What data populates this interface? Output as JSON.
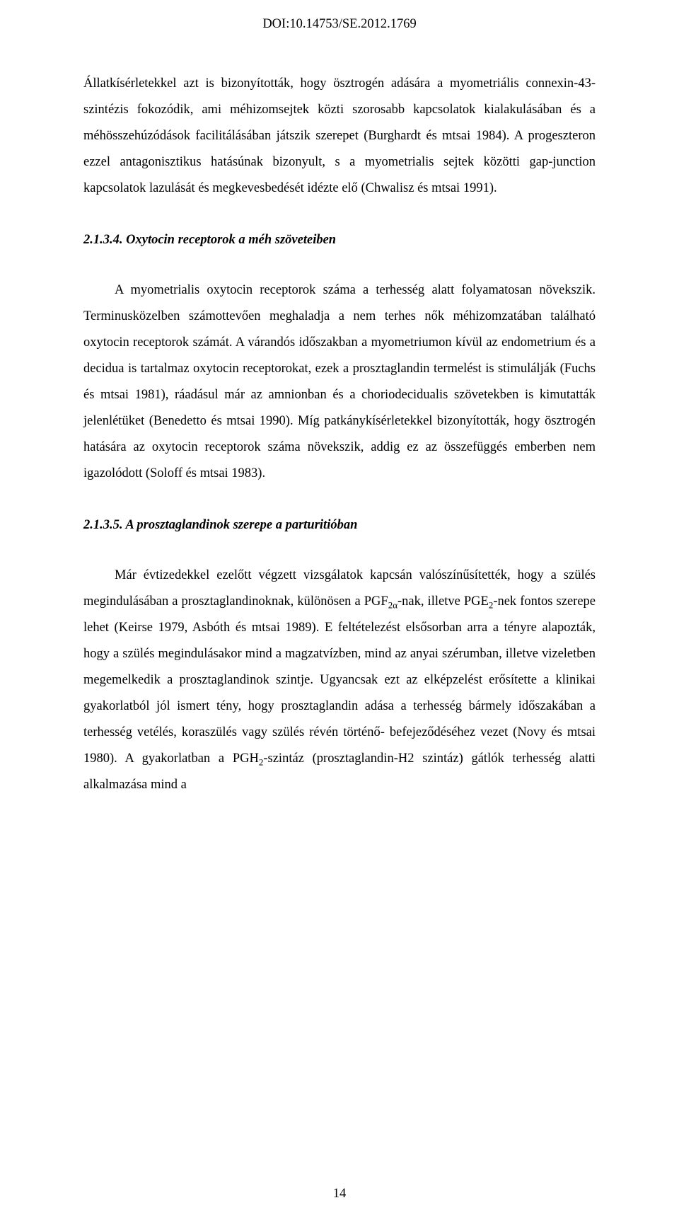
{
  "doi": "DOI:10.14753/SE.2012.1769",
  "para1": "Állatkísérletekkel azt is bizonyították, hogy ösztrogén adására a myometriális connexin-43-szintézis fokozódik, ami méhizomsejtek közti szorosabb kapcsolatok kialakulásában és a méhösszehúzódások facilitálásában játszik szerepet (Burghardt és mtsai 1984). A progeszteron ezzel antagonisztikus hatásúnak bizonyult, s a myometrialis sejtek közötti gap-junction kapcsolatok lazulását és megkevesbedését idézte elő (Chwalisz és mtsai 1991).",
  "heading1": "2.1.3.4. Oxytocin receptorok a méh szöveteiben",
  "para2": "A myometrialis oxytocin receptorok száma a terhesség alatt folyamatosan növekszik. Terminusközelben számottevően meghaladja a nem terhes nők méhizomzatában található oxytocin receptorok számát. A várandós időszakban a myometriumon kívül az endometrium és a decidua is tartalmaz oxytocin receptorokat, ezek a prosztaglandin termelést is stimulálják (Fuchs és mtsai 1981), ráadásul már az amnionban és a choriodecidualis szövetekben is kimutatták jelenlétüket (Benedetto és mtsai 1990). Míg patkánykísérletekkel bizonyították, hogy ösztrogén hatására az oxytocin receptorok száma növekszik, addig ez az összefüggés emberben nem igazolódott (Soloff és mtsai 1983).",
  "heading2": "2.1.3.5. A prosztaglandinok szerepe a parturitióban",
  "para3_a": "Már évtizedekkel ezelőtt végzett vizsgálatok kapcsán valószínűsítették, hogy a szülés megindulásában a prosztaglandinoknak, különösen a PGF",
  "para3_sub1": "2α",
  "para3_b": "-nak, illetve PGE",
  "para3_sub2": "2",
  "para3_c": "-nek fontos szerepe lehet (Keirse 1979, Asbóth és mtsai 1989). E feltételezést elsősorban arra a tényre alapozták, hogy a szülés megindulásakor mind a magzatvízben, mind az anyai szérumban, illetve vizeletben megemelkedik a prosztaglandinok szintje. Ugyancsak ezt az elképzelést erősítette a klinikai gyakorlatból jól ismert tény, hogy prosztaglandin adása a terhesség bármely időszakában a terhesség vetélés, koraszülés vagy szülés révén történő- befejeződéséhez vezet (Novy és mtsai 1980). A gyakorlatban a PGH",
  "para3_sub3": "2",
  "para3_d": "-szintáz (prosztaglandin-H2 szintáz) gátlók terhesség alatti alkalmazása mind a",
  "page_number": "14"
}
